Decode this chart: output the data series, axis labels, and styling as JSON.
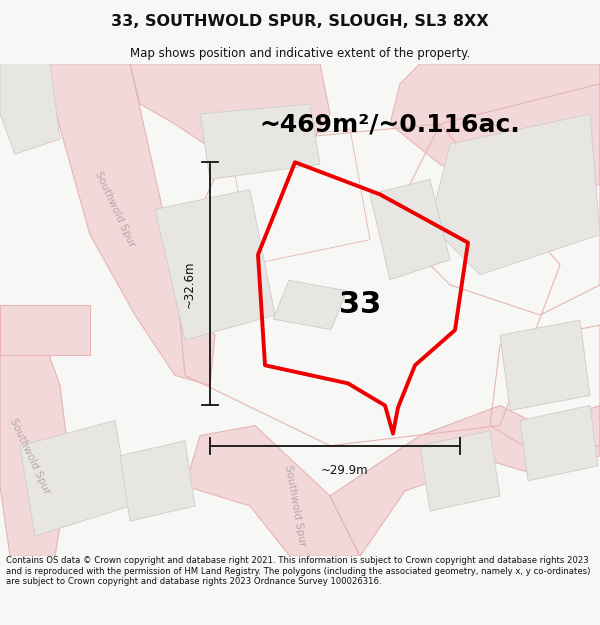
{
  "title": "33, SOUTHWOLD SPUR, SLOUGH, SL3 8XX",
  "subtitle": "Map shows position and indicative extent of the property.",
  "area_text": "~469m²/~0.116ac.",
  "label_33": "33",
  "dim_height": "~32.6m",
  "dim_width": "~29.9m",
  "footer": "Contains OS data © Crown copyright and database right 2021. This information is subject to Crown copyright and database rights 2023 and is reproduced with the permission of HM Land Registry. The polygons (including the associated geometry, namely x, y co-ordinates) are subject to Crown copyright and database rights 2023 Ordnance Survey 100026316.",
  "bg_color": "#f7f7f5",
  "map_bg": "#ffffff",
  "plot_color_red": "#ee0000",
  "road_line_color": "#e8b4b4",
  "road_fill_color": "#f2d8d8",
  "building_fill": "#e8e6e2",
  "building_edge": "#d0ccc8",
  "lot_fill": "#f0eeea",
  "street_label_color": "#b8a8a8",
  "title_color": "#111111",
  "footer_color": "#111111",
  "dim_line_color": "#111111"
}
